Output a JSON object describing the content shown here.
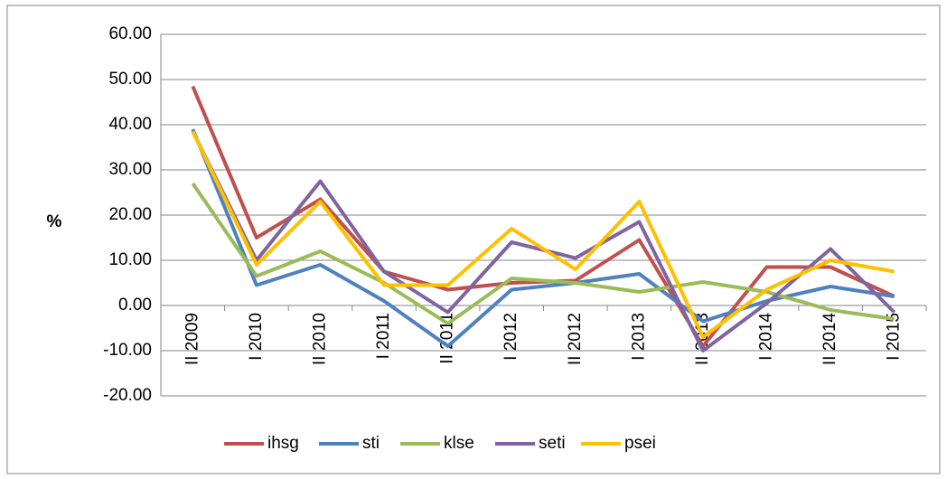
{
  "chart_data": {
    "type": "line",
    "y_label": "%",
    "categories": [
      "II 2009",
      "I 2010",
      "II 2010",
      "I 2011",
      "II 2011",
      "I 2012",
      "II 2012",
      "I 2013",
      "II 2013",
      "I 2014",
      "II 2014",
      "I 2015"
    ],
    "series": [
      {
        "name": "ihsg",
        "color": "#c0504d",
        "values": [
          48.5,
          15,
          23.5,
          7.5,
          3.5,
          5,
          5.5,
          14.5,
          -9,
          8.5,
          8.5,
          2
        ]
      },
      {
        "name": "sti",
        "color": "#4f81bd",
        "values": [
          39,
          4.5,
          9,
          1,
          -9,
          3.5,
          5,
          7,
          -3.5,
          1,
          4.2,
          2
        ]
      },
      {
        "name": "klse",
        "color": "#9bbb59",
        "values": [
          27,
          6.5,
          12,
          5,
          -4,
          6,
          5,
          3,
          5.2,
          3,
          -1,
          -3
        ]
      },
      {
        "name": "seti",
        "color": "#8064a2",
        "values": [
          38.5,
          10,
          27.5,
          7.5,
          -1.5,
          14,
          10.5,
          18.5,
          -10,
          0.5,
          12.5,
          -1.5
        ]
      },
      {
        "name": "psei",
        "color": "#ffc000",
        "values": [
          38.5,
          9,
          23,
          4.5,
          4.5,
          17,
          8,
          23,
          -7,
          3.5,
          10,
          7.5
        ]
      }
    ],
    "ylim": [
      -20,
      60
    ],
    "yticks": [
      {
        "value": -20,
        "label": "-20.00"
      },
      {
        "value": -10,
        "label": "-10.00"
      },
      {
        "value": 0,
        "label": "0.00"
      },
      {
        "value": 10,
        "label": "10.00"
      },
      {
        "value": 20,
        "label": "20.00"
      },
      {
        "value": 30,
        "label": "30.00"
      },
      {
        "value": 40,
        "label": "40.00"
      },
      {
        "value": 50,
        "label": "50.00"
      },
      {
        "value": 60,
        "label": "60.00"
      }
    ],
    "grid": true,
    "legend": "bottom"
  }
}
